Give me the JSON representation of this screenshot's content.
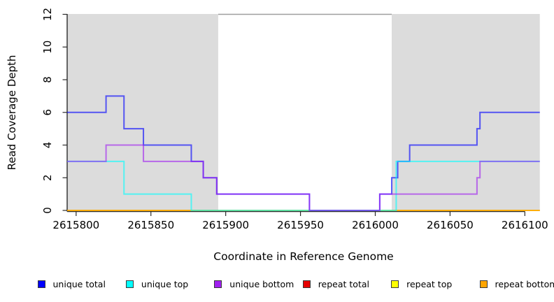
{
  "figure": {
    "y_axis_title": "Read Coverage Depth",
    "x_axis_title": "Coordinate in Reference Genome"
  },
  "chart_data": {
    "type": "line",
    "step": true,
    "title": "",
    "xlabel": "Coordinate in Reference Genome",
    "ylabel": "Read Coverage Depth",
    "xlim": [
      2615794,
      2616110
    ],
    "ylim": [
      0,
      12
    ],
    "x_ticks": [
      2615800,
      2615850,
      2615900,
      2615950,
      2616000,
      2616050,
      2616100
    ],
    "y_ticks": [
      0,
      2,
      4,
      6,
      8,
      10,
      12
    ],
    "grid": false,
    "legend_position": "bottom",
    "background_regions": [
      {
        "name": "left-shaded-region",
        "x0": 2615794,
        "x1": 2615895,
        "color": "#dcdcdc",
        "top_border": false
      },
      {
        "name": "center-gap-region",
        "x0": 2615895,
        "x1": 2616011,
        "color": "#ffffff",
        "top_border": true
      },
      {
        "name": "right-shaded-region",
        "x0": 2616011,
        "x1": 2616110,
        "color": "#dcdcdc",
        "top_border": false
      }
    ],
    "region_border_color": "#9e9e9e",
    "line_opacity": 0.62,
    "line_width": 2,
    "series": [
      {
        "name": "repeat total",
        "color": "#ff0000",
        "points": [
          [
            2615794,
            0
          ],
          [
            2616110,
            0
          ]
        ]
      },
      {
        "name": "repeat top",
        "color": "#ffff00",
        "points": [
          [
            2615794,
            0
          ],
          [
            2616110,
            0
          ]
        ]
      },
      {
        "name": "repeat bottom",
        "color": "#ffa500",
        "points": [
          [
            2615794,
            0
          ],
          [
            2616110,
            0
          ]
        ]
      },
      {
        "name": "unique total",
        "color": "#0000ff",
        "points": [
          [
            2615794,
            6
          ],
          [
            2615820,
            7
          ],
          [
            2615832,
            5
          ],
          [
            2615845,
            4
          ],
          [
            2615877,
            3
          ],
          [
            2615885,
            2
          ],
          [
            2615894,
            1
          ],
          [
            2615956,
            0
          ],
          [
            2616003,
            1
          ],
          [
            2616011,
            2
          ],
          [
            2616015,
            3
          ],
          [
            2616023,
            4
          ],
          [
            2616068,
            5
          ],
          [
            2616070,
            6
          ],
          [
            2616110,
            6
          ]
        ]
      },
      {
        "name": "unique top",
        "color": "#00ffff",
        "points": [
          [
            2615794,
            3
          ],
          [
            2615832,
            1
          ],
          [
            2615877,
            0
          ],
          [
            2616014,
            3
          ],
          [
            2616110,
            3
          ]
        ]
      },
      {
        "name": "unique bottom",
        "color": "#a020f0",
        "points": [
          [
            2615794,
            3
          ],
          [
            2615820,
            4
          ],
          [
            2615845,
            3
          ],
          [
            2615885,
            2
          ],
          [
            2615894,
            1
          ],
          [
            2615956,
            0
          ],
          [
            2616003,
            1
          ],
          [
            2616068,
            2
          ],
          [
            2616070,
            3
          ],
          [
            2616110,
            3
          ]
        ]
      }
    ],
    "legend": [
      {
        "label": "unique total",
        "color": "#0000ff"
      },
      {
        "label": "unique top",
        "color": "#00ffff"
      },
      {
        "label": "unique bottom",
        "color": "#a020f0"
      },
      {
        "label": "repeat total",
        "color": "#e60000"
      },
      {
        "label": "repeat top",
        "color": "#ffff00"
      },
      {
        "label": "repeat bottom",
        "color": "#ffa500"
      }
    ]
  }
}
